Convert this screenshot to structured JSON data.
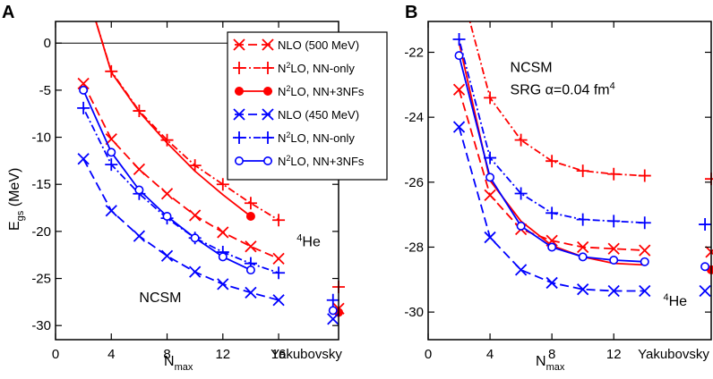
{
  "colors": {
    "red": "#ff0000",
    "blue": "#0000ff",
    "frame": "#000000"
  },
  "legend": {
    "entries": [
      {
        "main": "NLO (500 MeV)",
        "sup": "",
        "tail": "",
        "color": "red",
        "marker": "x",
        "dash": "long",
        "filled": false
      },
      {
        "main": "N",
        "sup": "2",
        "tail": "LO, NN-only",
        "color": "red",
        "marker": "plus",
        "dash": "dotdash",
        "filled": false
      },
      {
        "main": "N",
        "sup": "2",
        "tail": "LO, NN+3NFs",
        "color": "red",
        "marker": "circle",
        "dash": "solid",
        "filled": true
      },
      {
        "main": "NLO (450 MeV)",
        "sup": "",
        "tail": "",
        "color": "blue",
        "marker": "x",
        "dash": "long",
        "filled": false
      },
      {
        "main": "N",
        "sup": "2",
        "tail": "LO, NN-only",
        "color": "blue",
        "marker": "plus",
        "dash": "dotdash",
        "filled": false
      },
      {
        "main": "N",
        "sup": "2",
        "tail": "LO, NN+3NFs",
        "color": "blue",
        "marker": "circle",
        "dash": "solid",
        "filled": false
      }
    ]
  },
  "chart_data": [
    {
      "panel": "A",
      "type": "line",
      "xlabel_main": "N",
      "xlabel_sub": "max",
      "ylabel_main": "E",
      "ylabel_sub": "gs",
      "ylabel_tail": " (MeV)",
      "xlim": [
        0,
        20.3
      ],
      "ylim": [
        -31.5,
        2.3
      ],
      "xticks": [
        0,
        4,
        8,
        12,
        16
      ],
      "yticks": [
        0,
        -5,
        -10,
        -15,
        -20,
        -25,
        -30
      ],
      "extra_label": "Yakubovsky",
      "zero_line": true,
      "annotations": [
        {
          "id": "he4",
          "text": "He",
          "sup": "4",
          "x": 17.3,
          "y": -21.6
        },
        {
          "id": "ncsm",
          "text": "NCSM",
          "sup": "",
          "x": 6.0,
          "y": -27.5
        }
      ],
      "series": [
        {
          "name": "NLO (500 MeV)",
          "color": "red",
          "marker": "x",
          "dash": "long",
          "filled": false,
          "x": [
            2,
            4,
            6,
            8,
            10,
            12,
            14,
            16
          ],
          "y": [
            -4.3,
            -10.2,
            -13.4,
            -16.0,
            -18.3,
            -20.1,
            -21.6,
            -22.9
          ],
          "exact": {
            "x": 20.3,
            "y": -28.2
          }
        },
        {
          "name": "N2LO, NN-only",
          "color": "red",
          "marker": "plus",
          "dash": "dotdash",
          "filled": false,
          "x": [
            4,
            6,
            8,
            10,
            12,
            14,
            16
          ],
          "y": [
            -3.0,
            -7.2,
            -10.3,
            -13.0,
            -15.0,
            -17.0,
            -18.8
          ],
          "curve_start": {
            "x": 2.9,
            "y": 2.3
          },
          "exact": {
            "x": 20.3,
            "y": -25.9
          }
        },
        {
          "name": "N2LO, NN+3NFs",
          "color": "red",
          "marker": "circle",
          "dash": "solid",
          "filled": true,
          "x": [
            4,
            6,
            8,
            10,
            12,
            14
          ],
          "y": [
            -3.1,
            -7.3,
            -10.6,
            -13.6,
            -16.1,
            -18.4
          ],
          "curve_start": {
            "x": 2.9,
            "y": 2.3
          },
          "markers_at": [
            14
          ],
          "exact": {
            "x": 20.3,
            "y": -28.6
          }
        },
        {
          "name": "NLO (450 MeV)",
          "color": "blue",
          "marker": "x",
          "dash": "long",
          "filled": false,
          "x": [
            2,
            4,
            6,
            8,
            10,
            12,
            14,
            16
          ],
          "y": [
            -12.3,
            -17.8,
            -20.5,
            -22.6,
            -24.3,
            -25.6,
            -26.5,
            -27.3
          ],
          "exact": {
            "x": 19.9,
            "y": -29.3
          }
        },
        {
          "name": "N2LO, NN-only",
          "color": "blue",
          "marker": "plus",
          "dash": "dotdash",
          "filled": false,
          "x": [
            2,
            4,
            6,
            8,
            10,
            12,
            14,
            16
          ],
          "y": [
            -6.9,
            -12.9,
            -16.0,
            -18.6,
            -20.7,
            -22.2,
            -23.4,
            -24.4
          ],
          "exact": {
            "x": 19.9,
            "y": -27.3
          }
        },
        {
          "name": "N2LO, NN+3NFs",
          "color": "blue",
          "marker": "circle",
          "dash": "solid",
          "filled": false,
          "x": [
            2,
            4,
            6,
            8,
            10,
            12,
            14
          ],
          "y": [
            -5.0,
            -11.6,
            -15.6,
            -18.4,
            -20.7,
            -22.7,
            -24.1
          ],
          "exact": {
            "x": 19.9,
            "y": -28.4
          }
        }
      ]
    },
    {
      "panel": "B",
      "type": "line",
      "xlabel_main": "N",
      "xlabel_sub": "max",
      "ylabel_main": "",
      "ylabel_sub": "",
      "ylabel_tail": "",
      "xlim": [
        0,
        18.3
      ],
      "ylim": [
        -30.85,
        -21.05
      ],
      "xticks": [
        0,
        4,
        8,
        12
      ],
      "yticks": [
        -22,
        -24,
        -26,
        -28,
        -30
      ],
      "extra_label": "Yakubovsky",
      "zero_line": false,
      "annotations": [
        {
          "id": "ncsm",
          "text": "NCSM",
          "sup": "",
          "x": 5.3,
          "y": -22.6
        },
        {
          "id": "srg",
          "text": "SRG α=0.04 fm",
          "sup": "4",
          "x": 5.3,
          "y": -23.3
        },
        {
          "id": "he4",
          "text": "He",
          "sup": "4",
          "x": 15.2,
          "y": -29.8
        }
      ],
      "series": [
        {
          "name": "NLO (500 MeV)",
          "color": "red",
          "marker": "x",
          "dash": "long",
          "filled": false,
          "x": [
            2,
            4,
            6,
            8,
            10,
            12,
            14
          ],
          "y": [
            -23.15,
            -26.4,
            -27.45,
            -27.8,
            -28.0,
            -28.05,
            -28.1
          ],
          "exact": {
            "x": 18.3,
            "y": -28.15
          }
        },
        {
          "name": "N2LO, NN-only",
          "color": "red",
          "marker": "plus",
          "dash": "dotdash",
          "filled": false,
          "x": [
            4,
            6,
            8,
            10,
            12,
            14
          ],
          "y": [
            -23.4,
            -24.7,
            -25.35,
            -25.65,
            -25.75,
            -25.8
          ],
          "curve_start": {
            "x": 2.7,
            "y": -21.05
          },
          "exact": {
            "x": 18.3,
            "y": -25.9
          }
        },
        {
          "name": "N2LO, NN+3NFs",
          "color": "red",
          "marker": "circle",
          "dash": "solid",
          "filled": true,
          "x": [
            2,
            4,
            6,
            8,
            10,
            12,
            14
          ],
          "y": [
            -21.7,
            -25.95,
            -27.2,
            -27.95,
            -28.3,
            -28.5,
            -28.55
          ],
          "markers_at": [],
          "exact": {
            "x": 18.3,
            "y": -28.7
          }
        },
        {
          "name": "NLO (450 MeV)",
          "color": "blue",
          "marker": "x",
          "dash": "long",
          "filled": false,
          "x": [
            2,
            4,
            6,
            8,
            10,
            12,
            14
          ],
          "y": [
            -24.3,
            -27.7,
            -28.7,
            -29.1,
            -29.3,
            -29.35,
            -29.35
          ],
          "exact": {
            "x": 17.9,
            "y": -29.35
          }
        },
        {
          "name": "N2LO, NN-only",
          "color": "blue",
          "marker": "plus",
          "dash": "dotdash",
          "filled": false,
          "x": [
            2,
            4,
            6,
            8,
            10,
            12,
            14
          ],
          "y": [
            -21.6,
            -25.25,
            -26.35,
            -26.95,
            -27.15,
            -27.2,
            -27.25
          ],
          "exact": {
            "x": 17.9,
            "y": -27.3
          }
        },
        {
          "name": "N2LO, NN+3NFs",
          "color": "blue",
          "marker": "circle",
          "dash": "solid",
          "filled": false,
          "x": [
            2,
            4,
            6,
            8,
            10,
            12,
            14
          ],
          "y": [
            -22.1,
            -25.85,
            -27.35,
            -28.0,
            -28.3,
            -28.4,
            -28.45
          ],
          "exact": {
            "x": 17.9,
            "y": -28.6
          }
        }
      ]
    }
  ]
}
